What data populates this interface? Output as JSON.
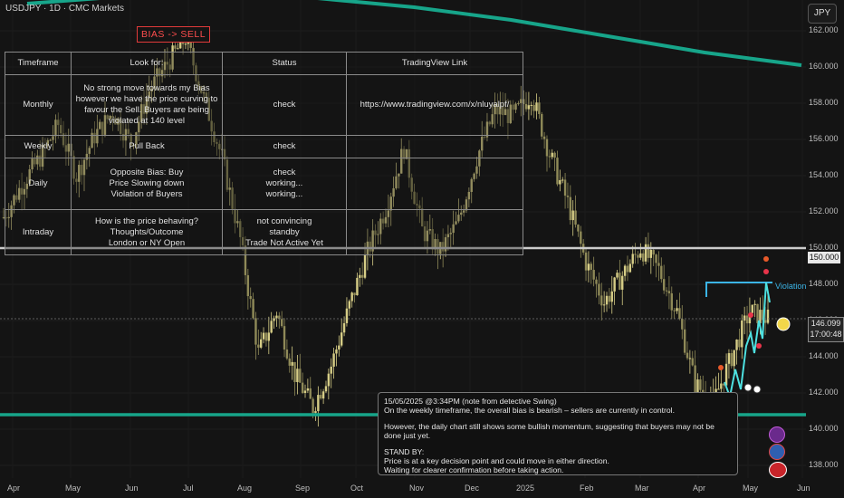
{
  "header": {
    "symbol_line": "USDJPY · 1D · CMC Markets",
    "currency_badge": "JPY"
  },
  "bias_label": "BIAS -> SELL",
  "plan_table": {
    "headers": [
      "Timeframe",
      "Look for:",
      "Status",
      "TradingView Link"
    ],
    "rows": [
      {
        "timeframe": "Monthly",
        "look_for": "No strong move towards my Bias however we have the price curving to favour the Sell. Buyers are being violated at 140 level",
        "status": "check",
        "link": "https://www.tradingview.com/x/nluyalpf/"
      },
      {
        "timeframe": "Weekly",
        "look_for": "Pull Back",
        "status": "check",
        "link": ""
      },
      {
        "timeframe": "Daily",
        "look_for": "Opposite Bias: Buy\nPrice Slowing down\nViolation of Buyers",
        "status": "check\nworking...\nworking...",
        "link": ""
      },
      {
        "timeframe": "Intraday",
        "look_for": "How is the price behaving?\nThoughts/Outcome\nLondon or NY Open",
        "status": "not convincing\nstandby\nTrade Not Active Yet",
        "link": ""
      }
    ]
  },
  "note": {
    "line1": "15/05/2025 @3:34PM (note from detective Swing)",
    "line2": "On the weekly timeframe, the overall bias is bearish – sellers are currently in control.",
    "line3": "However, the daily chart still shows some bullish momentum, suggesting that buyers may not be done just yet.",
    "line4": "STAND BY:",
    "line5": "Price is at a key decision point and could move in either direction.",
    "line6": "Waiting for clearer confirmation before taking action."
  },
  "price_tag": "150.000",
  "current_price": {
    "value": "146.099",
    "countdown": "17:00:48"
  },
  "violation_label": "Violation",
  "colors": {
    "background": "#141414",
    "candle": "#c9c07a",
    "teal": "#17a58a",
    "level_line": "#cccccc",
    "violation": "#3bb4e6",
    "bias": "#ff4d4d"
  },
  "chart_data": {
    "type": "line",
    "title": "USDJPY · 1D · CMC Markets",
    "x_ticks": [
      "Apr",
      "May",
      "Jun",
      "Jul",
      "Aug",
      "Sep",
      "Oct",
      "Nov",
      "Dec",
      "2025",
      "Feb",
      "Mar",
      "Apr",
      "May",
      "Jun"
    ],
    "y_ticks": [
      "162.000",
      "160.000",
      "158.000",
      "156.000",
      "154.000",
      "152.000",
      "150.000",
      "148.000",
      "146.000",
      "144.000",
      "142.000",
      "140.000",
      "138.000"
    ],
    "ylim": [
      137.3,
      163.7
    ],
    "series": [
      {
        "values": [
          151.7,
          153.5,
          155.0,
          156.8,
          154.0,
          156.2,
          157.5,
          155.8,
          158.7,
          160.2,
          161.6,
          158.3,
          155.0,
          150.5,
          144.2,
          146.5,
          143.0,
          141.2,
          143.5,
          146.8,
          149.8,
          152.2,
          155.5,
          151.0,
          149.8,
          151.5,
          155.0,
          157.6,
          157.3,
          158.5,
          155.2,
          152.5,
          149.2,
          147.0,
          148.5,
          150.0,
          148.8,
          146.5,
          142.5,
          141.5,
          144.0,
          146.5,
          146.099
        ]
      }
    ],
    "levels": [
      {
        "price": 150.0,
        "label": "150.000"
      },
      {
        "price": 140.8
      },
      {
        "price": 148.1,
        "label": "Violation"
      }
    ],
    "curve": {
      "name": "",
      "values": [
        163.5,
        163.9,
        164.0,
        163.8,
        163.3,
        162.6,
        161.7,
        160.8,
        160.1
      ]
    },
    "grid": true
  }
}
